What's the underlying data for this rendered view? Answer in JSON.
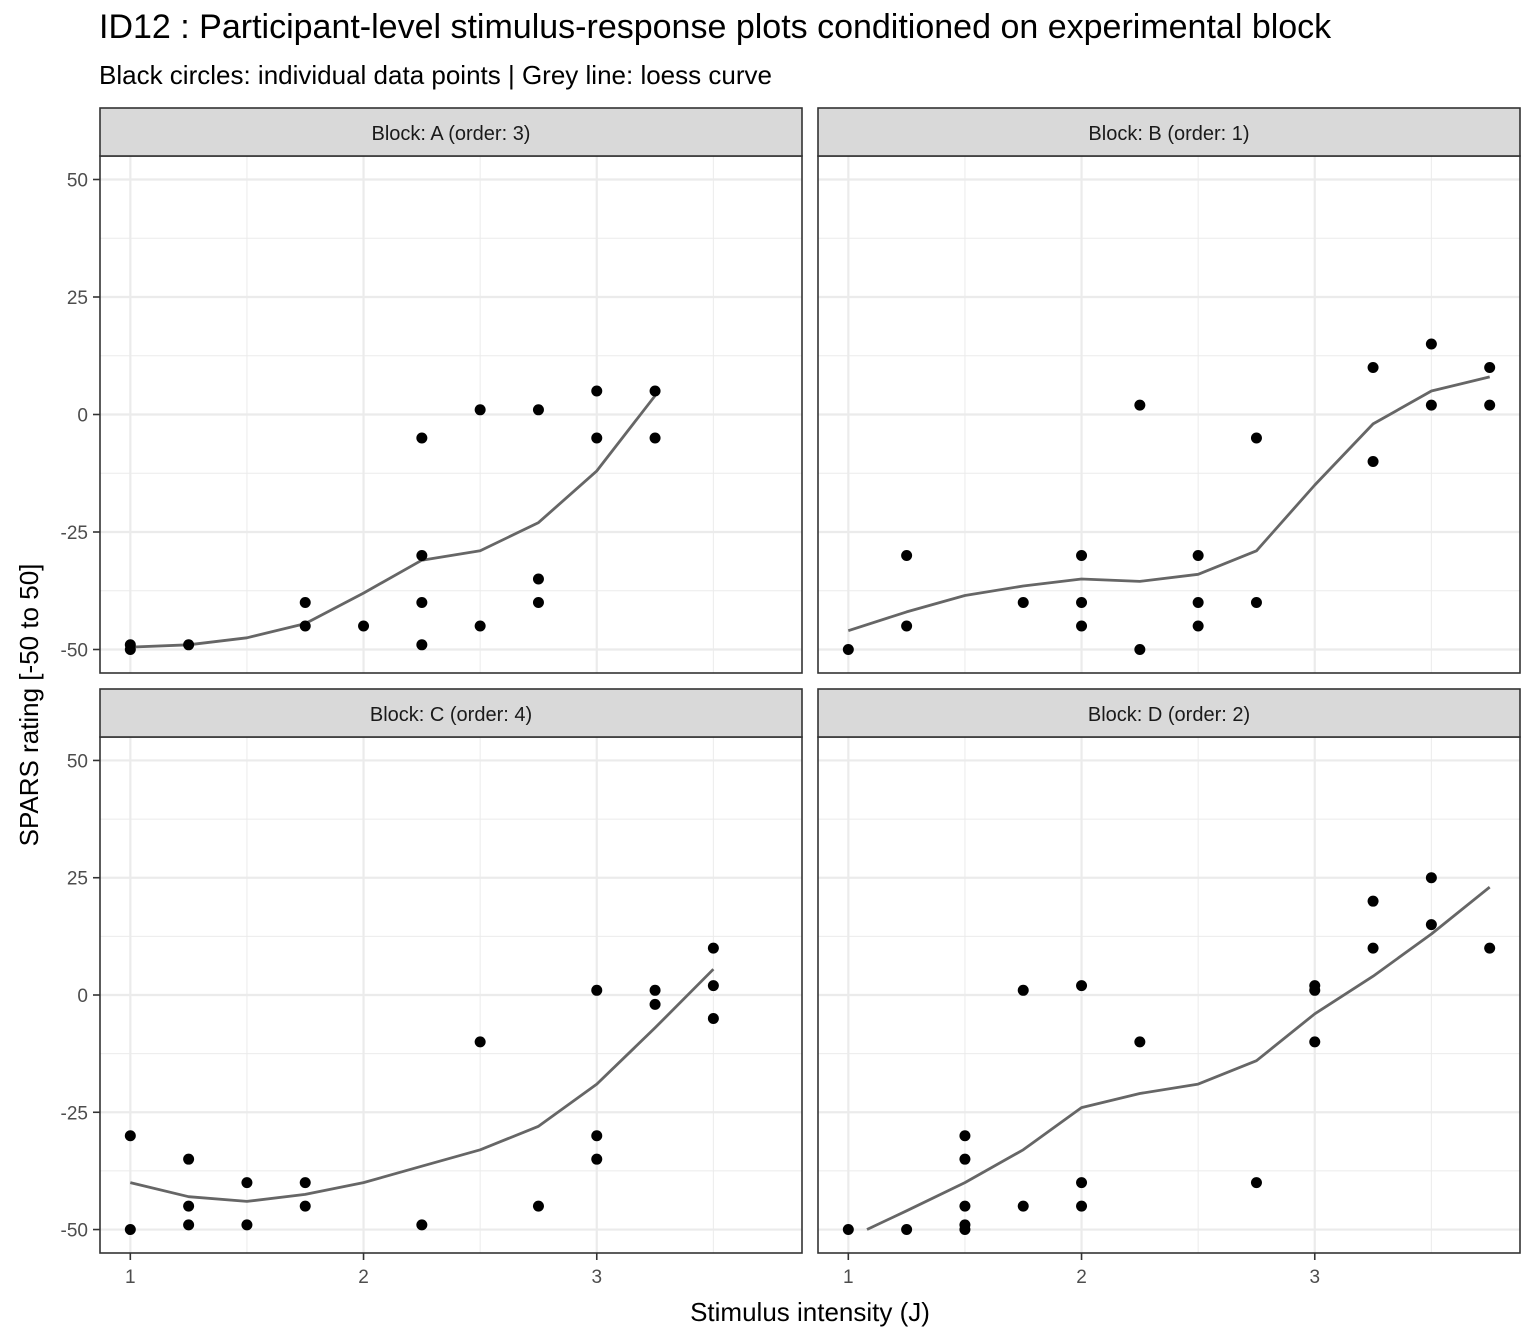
{
  "header": {
    "title": "ID12 : Participant-level stimulus-response plots conditioned on experimental block",
    "subtitle": "Black circles: individual data points | Grey line: loess curve"
  },
  "colors": {
    "point": "#000000",
    "loess": "#666666",
    "strip_bg": "#d9d9d9",
    "panel_border": "#333333",
    "grid": "#ebebeb"
  },
  "chart_data": {
    "type": "scatter",
    "xlabel": "Stimulus intensity (J)",
    "ylabel": "SPARS rating [-50 to 50]",
    "xlim": [
      0.87,
      3.88
    ],
    "ylim": [
      -55,
      55
    ],
    "x_ticks": [
      "1",
      "2",
      "3"
    ],
    "y_ticks": [
      "50",
      "25",
      "0",
      "-25",
      "-50"
    ],
    "grid": true,
    "panels": [
      {
        "strip": "Block: A (order: 3)",
        "points": [
          [
            1,
            -49
          ],
          [
            1,
            -50
          ],
          [
            1.25,
            -49
          ],
          [
            1.75,
            -40
          ],
          [
            1.75,
            -45
          ],
          [
            2,
            -45
          ],
          [
            2.25,
            -5
          ],
          [
            2.25,
            -30
          ],
          [
            2.25,
            -40
          ],
          [
            2.25,
            -49
          ],
          [
            2.5,
            1
          ],
          [
            2.5,
            -45
          ],
          [
            2.75,
            1
          ],
          [
            2.75,
            -35
          ],
          [
            2.75,
            -40
          ],
          [
            3,
            5
          ],
          [
            3,
            -5
          ],
          [
            3.25,
            5
          ],
          [
            3.25,
            -5
          ]
        ],
        "loess": [
          [
            1,
            -49.5
          ],
          [
            1.25,
            -49
          ],
          [
            1.5,
            -47.5
          ],
          [
            1.75,
            -44.5
          ],
          [
            2,
            -38
          ],
          [
            2.25,
            -31
          ],
          [
            2.5,
            -29
          ],
          [
            2.75,
            -23
          ],
          [
            3,
            -12
          ],
          [
            3.25,
            4
          ]
        ]
      },
      {
        "strip": "Block: B (order: 1)",
        "points": [
          [
            1,
            -50
          ],
          [
            1.25,
            -30
          ],
          [
            1.25,
            -45
          ],
          [
            1.75,
            -40
          ],
          [
            2,
            -30
          ],
          [
            2,
            -40
          ],
          [
            2,
            -45
          ],
          [
            2.25,
            2
          ],
          [
            2.25,
            -50
          ],
          [
            2.5,
            -30
          ],
          [
            2.5,
            -40
          ],
          [
            2.5,
            -45
          ],
          [
            2.75,
            -5
          ],
          [
            2.75,
            -40
          ],
          [
            3.25,
            10
          ],
          [
            3.25,
            -10
          ],
          [
            3.5,
            15
          ],
          [
            3.5,
            2
          ],
          [
            3.75,
            10
          ],
          [
            3.75,
            2
          ]
        ],
        "loess": [
          [
            1,
            -46
          ],
          [
            1.25,
            -42
          ],
          [
            1.5,
            -38.5
          ],
          [
            1.75,
            -36.5
          ],
          [
            2,
            -35
          ],
          [
            2.25,
            -35.5
          ],
          [
            2.5,
            -34
          ],
          [
            2.75,
            -29
          ],
          [
            3,
            -15
          ],
          [
            3.25,
            -2
          ],
          [
            3.5,
            5
          ],
          [
            3.75,
            8
          ]
        ]
      },
      {
        "strip": "Block: C (order: 4)",
        "points": [
          [
            1,
            -30
          ],
          [
            1,
            -50
          ],
          [
            1.25,
            -35
          ],
          [
            1.25,
            -45
          ],
          [
            1.25,
            -49
          ],
          [
            1.5,
            -40
          ],
          [
            1.5,
            -49
          ],
          [
            1.75,
            -40
          ],
          [
            1.75,
            -45
          ],
          [
            2.25,
            -49
          ],
          [
            2.5,
            -10
          ],
          [
            2.75,
            -45
          ],
          [
            3,
            1
          ],
          [
            3,
            -30
          ],
          [
            3,
            -35
          ],
          [
            3.25,
            1
          ],
          [
            3.25,
            -2
          ],
          [
            3.5,
            10
          ],
          [
            3.5,
            2
          ],
          [
            3.5,
            -5
          ]
        ],
        "loess": [
          [
            1,
            -40
          ],
          [
            1.25,
            -43
          ],
          [
            1.5,
            -44
          ],
          [
            1.75,
            -42.5
          ],
          [
            2,
            -40
          ],
          [
            2.25,
            -36.5
          ],
          [
            2.5,
            -33
          ],
          [
            2.75,
            -28
          ],
          [
            3,
            -19
          ],
          [
            3.25,
            -7
          ],
          [
            3.5,
            5.5
          ]
        ]
      },
      {
        "strip": "Block: D (order: 2)",
        "points": [
          [
            1,
            -50
          ],
          [
            1.25,
            -50
          ],
          [
            1.5,
            -30
          ],
          [
            1.5,
            -35
          ],
          [
            1.5,
            -45
          ],
          [
            1.5,
            -49
          ],
          [
            1.5,
            -50
          ],
          [
            1.75,
            1
          ],
          [
            1.75,
            -45
          ],
          [
            2,
            2
          ],
          [
            2,
            -40
          ],
          [
            2,
            -45
          ],
          [
            2.25,
            -10
          ],
          [
            2.75,
            -40
          ],
          [
            3,
            2
          ],
          [
            3,
            1
          ],
          [
            3,
            -10
          ],
          [
            3.25,
            20
          ],
          [
            3.25,
            10
          ],
          [
            3.5,
            25
          ],
          [
            3.5,
            15
          ],
          [
            3.75,
            10
          ]
        ],
        "loess": [
          [
            1.08,
            -50
          ],
          [
            1.25,
            -46
          ],
          [
            1.5,
            -40
          ],
          [
            1.75,
            -33
          ],
          [
            2,
            -24
          ],
          [
            2.25,
            -21
          ],
          [
            2.5,
            -19
          ],
          [
            2.75,
            -14
          ],
          [
            3,
            -4
          ],
          [
            3.25,
            4
          ],
          [
            3.5,
            13
          ],
          [
            3.75,
            23
          ]
        ]
      }
    ]
  }
}
